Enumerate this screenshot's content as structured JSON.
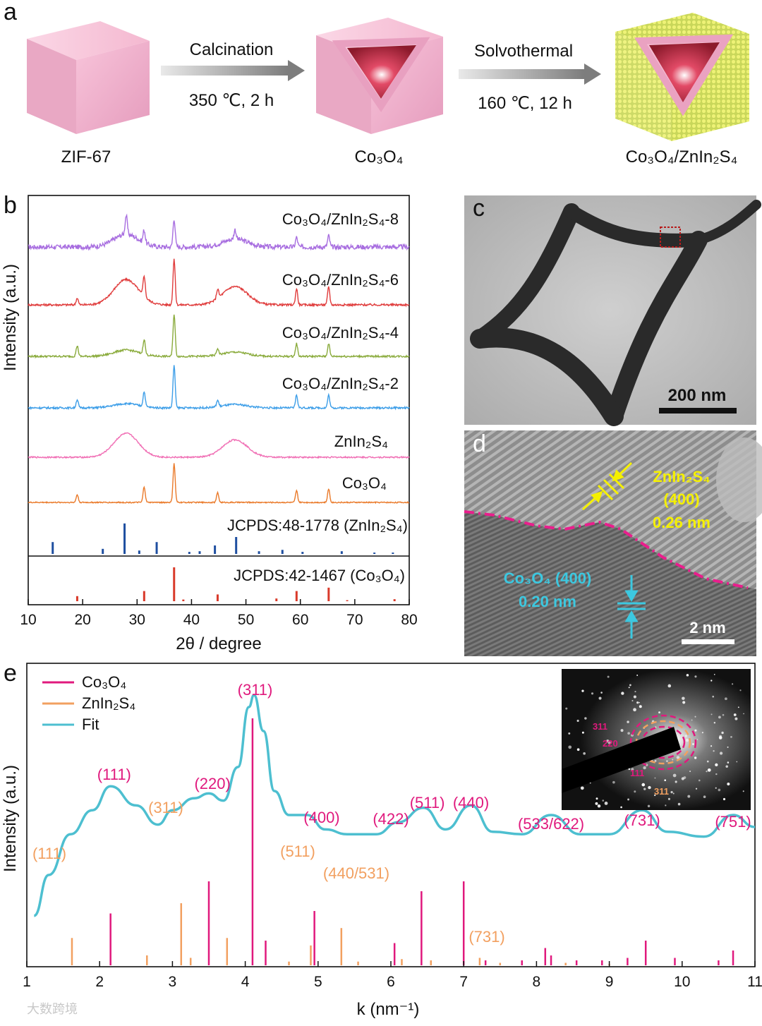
{
  "panel_a": {
    "letter": "a",
    "step1": {
      "method": "Calcination",
      "condition": "350 ℃, 2 h"
    },
    "step2": {
      "method": "Solvothermal",
      "condition": "160 ℃, 12 h"
    },
    "materials": [
      "ZIF-67",
      "Co₃O₄",
      "Co₃O₄/ZnIn₂S₄"
    ],
    "colors": {
      "pink": "#f3a8c6",
      "arrow": "#7d7d7d",
      "shell": "#c8d65a"
    }
  },
  "panel_b": {
    "letter": "b",
    "chart_data": {
      "type": "line",
      "title": "",
      "xlabel": "2θ / degree",
      "ylabel": "Intensity (a.u.)",
      "xlim": [
        10,
        80
      ],
      "xticks": [
        "10",
        "20",
        "30",
        "40",
        "50",
        "60",
        "70",
        "80"
      ],
      "series": [
        {
          "name": "Co₃O₄/ZnIn₂S₄-8",
          "color": "#a86ee0",
          "peaks": [
            [
              28,
              0.6
            ],
            [
              31.3,
              0.4
            ],
            [
              36.8,
              0.9
            ],
            [
              48,
              0.3
            ],
            [
              59.3,
              0.3
            ],
            [
              65.2,
              0.35
            ]
          ],
          "noise": 0.5,
          "hump": [
            [
              28,
              0.4
            ],
            [
              48,
              0.25
            ]
          ]
        },
        {
          "name": "Co₃O₄/ZnIn₂S₄-6",
          "color": "#e03c3c",
          "peaks": [
            [
              19,
              0.15
            ],
            [
              31.3,
              0.45
            ],
            [
              36.8,
              1.0
            ],
            [
              44.8,
              0.2
            ],
            [
              59.3,
              0.35
            ],
            [
              65.2,
              0.4
            ]
          ],
          "noise": 0.15,
          "hump": [
            [
              28,
              0.55
            ],
            [
              48,
              0.4
            ]
          ]
        },
        {
          "name": "Co₃O₄/ZnIn₂S₄-4",
          "color": "#8aab3c",
          "peaks": [
            [
              19,
              0.25
            ],
            [
              31.3,
              0.35
            ],
            [
              36.8,
              1.0
            ],
            [
              44.8,
              0.15
            ],
            [
              59.3,
              0.3
            ],
            [
              65.2,
              0.3
            ]
          ],
          "noise": 0.15,
          "hump": [
            [
              28,
              0.15
            ],
            [
              48,
              0.1
            ]
          ]
        },
        {
          "name": "Co₃O₄/ZnIn₂S₄-2",
          "color": "#3d9ee8",
          "peaks": [
            [
              19,
              0.2
            ],
            [
              31.3,
              0.35
            ],
            [
              36.8,
              1.0
            ],
            [
              44.8,
              0.15
            ],
            [
              59.3,
              0.3
            ],
            [
              65.2,
              0.3
            ]
          ],
          "noise": 0.15,
          "hump": [
            [
              28,
              0.1
            ],
            [
              48,
              0.08
            ]
          ]
        },
        {
          "name": "ZnIn₂S₄",
          "color": "#f06eb4",
          "peaks": [],
          "noise": 0.15,
          "hump": [
            [
              28,
              0.75
            ],
            [
              48,
              0.55
            ]
          ]
        },
        {
          "name": "Co₃O₄",
          "color": "#ea7a2a",
          "peaks": [
            [
              19,
              0.2
            ],
            [
              31.3,
              0.4
            ],
            [
              36.8,
              1.0
            ],
            [
              44.8,
              0.25
            ],
            [
              59.3,
              0.3
            ],
            [
              65.2,
              0.35
            ]
          ],
          "noise": 0.1,
          "hump": []
        }
      ],
      "references": [
        {
          "name": "JCPDS:48-1778 (ZnIn₂S₄)",
          "color": "#1f4fa0",
          "lines": [
            [
              14.5,
              0.35
            ],
            [
              23.7,
              0.15
            ],
            [
              27.7,
              0.9
            ],
            [
              30.4,
              0.1
            ],
            [
              33.6,
              0.35
            ],
            [
              39.6,
              0.06
            ],
            [
              41.5,
              0.08
            ],
            [
              44.3,
              0.25
            ],
            [
              48.2,
              0.5
            ],
            [
              52.4,
              0.08
            ],
            [
              56.7,
              0.12
            ],
            [
              60.4,
              0.06
            ],
            [
              67.6,
              0.08
            ],
            [
              73.6,
              0.04
            ],
            [
              77.0,
              0.04
            ]
          ]
        },
        {
          "name": "JCPDS:42-1467 (Co₃O₄)",
          "color": "#d93a2a",
          "lines": [
            [
              19.0,
              0.15
            ],
            [
              31.3,
              0.3
            ],
            [
              36.8,
              1.0
            ],
            [
              38.5,
              0.05
            ],
            [
              44.8,
              0.2
            ],
            [
              55.6,
              0.08
            ],
            [
              59.3,
              0.3
            ],
            [
              65.2,
              0.4
            ],
            [
              68.6,
              0.03
            ],
            [
              77.3,
              0.06
            ]
          ]
        }
      ]
    }
  },
  "panel_c": {
    "letter": "c",
    "scale_bar": "200 nm"
  },
  "panel_d": {
    "letter": "d",
    "zis_label": [
      "ZnIn₂S₄",
      "(400)",
      "0.26 nm"
    ],
    "co_label": [
      "Co₃O₄ (400)",
      "0.20 nm"
    ],
    "scale_bar": "2 nm"
  },
  "panel_e": {
    "letter": "e",
    "chart_data": {
      "type": "line",
      "xlabel": "k (nm⁻¹)",
      "ylabel": "Intensity (a.u.)",
      "xlim": [
        1,
        11
      ],
      "xticks": [
        "1",
        "2",
        "3",
        "4",
        "5",
        "6",
        "7",
        "8",
        "9",
        "10",
        "11"
      ],
      "legend": [
        {
          "name": "Co₃O₄",
          "color": "#e0197d"
        },
        {
          "name": "ZnIn₂S₄",
          "color": "#f2a060"
        },
        {
          "name": "Fit",
          "color": "#4dbfd0"
        }
      ],
      "fit_points": [
        [
          1.1,
          0.08
        ],
        [
          1.3,
          0.25
        ],
        [
          1.6,
          0.42
        ],
        [
          1.9,
          0.52
        ],
        [
          2.15,
          0.62
        ],
        [
          2.5,
          0.54
        ],
        [
          2.8,
          0.46
        ],
        [
          3.0,
          0.52
        ],
        [
          3.3,
          0.57
        ],
        [
          3.5,
          0.59
        ],
        [
          3.7,
          0.56
        ],
        [
          3.9,
          0.7
        ],
        [
          4.05,
          0.95
        ],
        [
          4.12,
          1.0
        ],
        [
          4.25,
          0.85
        ],
        [
          4.4,
          0.6
        ],
        [
          4.6,
          0.5
        ],
        [
          4.85,
          0.5
        ],
        [
          5.1,
          0.44
        ],
        [
          5.4,
          0.42
        ],
        [
          5.8,
          0.42
        ],
        [
          6.1,
          0.47
        ],
        [
          6.45,
          0.53
        ],
        [
          6.75,
          0.44
        ],
        [
          7.1,
          0.54
        ],
        [
          7.4,
          0.43
        ],
        [
          7.8,
          0.42
        ],
        [
          8.2,
          0.5
        ],
        [
          8.6,
          0.42
        ],
        [
          9.0,
          0.42
        ],
        [
          9.45,
          0.52
        ],
        [
          9.8,
          0.43
        ],
        [
          10.3,
          0.41
        ],
        [
          10.7,
          0.5
        ],
        [
          11.0,
          0.45
        ]
      ],
      "co3o4_sticks": [
        [
          2.15,
          0.21
        ],
        [
          3.5,
          0.34
        ],
        [
          4.1,
          1.0
        ],
        [
          4.28,
          0.1
        ],
        [
          4.95,
          0.22
        ],
        [
          6.05,
          0.09
        ],
        [
          6.42,
          0.3
        ],
        [
          7.0,
          0.34
        ],
        [
          7.3,
          0.02
        ],
        [
          7.8,
          0.02
        ],
        [
          8.12,
          0.07
        ],
        [
          8.2,
          0.04
        ],
        [
          8.55,
          0.02
        ],
        [
          8.9,
          0.02
        ],
        [
          9.25,
          0.03
        ],
        [
          9.5,
          0.1
        ],
        [
          9.9,
          0.03
        ],
        [
          10.5,
          0.02
        ],
        [
          10.7,
          0.06
        ]
      ],
      "zis_sticks": [
        [
          1.62,
          0.22
        ],
        [
          2.65,
          0.08
        ],
        [
          3.12,
          0.5
        ],
        [
          3.25,
          0.06
        ],
        [
          3.75,
          0.22
        ],
        [
          4.6,
          0.03
        ],
        [
          4.9,
          0.16
        ],
        [
          5.32,
          0.3
        ],
        [
          5.55,
          0.03
        ],
        [
          6.15,
          0.05
        ],
        [
          6.55,
          0.04
        ],
        [
          7.22,
          0.06
        ],
        [
          7.5,
          0.02
        ],
        [
          8.4,
          0.02
        ],
        [
          9.0,
          0.01
        ]
      ],
      "co3o4_labels": [
        [
          2.2,
          "(111)"
        ],
        [
          3.55,
          "(220)"
        ],
        [
          4.6,
          "(311)"
        ],
        [
          5.05,
          "(400)"
        ],
        [
          6.0,
          "(422)"
        ],
        [
          6.5,
          "(511)"
        ],
        [
          7.1,
          "(440)"
        ],
        [
          8.2,
          "(533/622)"
        ],
        [
          9.45,
          "(731)"
        ],
        [
          10.7,
          "(751)"
        ]
      ],
      "zis_labels": [
        [
          1.05,
          "(111)"
        ],
        [
          2.9,
          "(311)"
        ],
        [
          4.7,
          "(511)"
        ],
        [
          5.5,
          "(440/531)"
        ],
        [
          7.2,
          "(731)"
        ]
      ]
    },
    "inset_rings": {
      "labels": [
        "311",
        "220",
        "111",
        "311"
      ]
    }
  },
  "watermark": "大数跨境"
}
